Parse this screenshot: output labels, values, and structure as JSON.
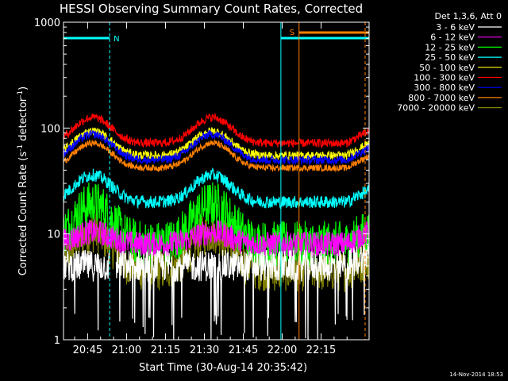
{
  "chart_data": {
    "type": "line",
    "title": "HESSI Observing Summary Count Rates, Corrected",
    "xlabel": "Start Time (30-Aug-14 20:35:42)",
    "ylabel": "Corrected Count Rate (s",
    "ylabel_sup1": "-1",
    "ylabel_mid": " detector",
    "ylabel_sup2": "-1",
    "ylabel_end": ")",
    "yscale": "log",
    "ylim": [
      1,
      1000
    ],
    "xlim_min": [
      35.7,
      153.5
    ],
    "x_ticks": [
      {
        "label": "20:45",
        "min": 45
      },
      {
        "label": "21:00",
        "min": 60
      },
      {
        "label": "21:15",
        "min": 75
      },
      {
        "label": "21:30",
        "min": 90
      },
      {
        "label": "21:45",
        "min": 105
      },
      {
        "label": "22:00",
        "min": 120
      },
      {
        "label": "22:15",
        "min": 135
      }
    ],
    "y_ticks": [
      {
        "label": "1",
        "value": 1
      },
      {
        "label": "10",
        "value": 10
      },
      {
        "label": "100",
        "value": 100
      },
      {
        "label": "1000",
        "value": 1000
      }
    ],
    "legend_header": "Det 1,3,6, Att 0",
    "series": [
      {
        "name": "3 - 6 keV",
        "color": "#ffffff",
        "base": 5,
        "amp": 0,
        "noise": 0.15,
        "spikes": true
      },
      {
        "name": "6 - 12 keV",
        "color": "#ff00ff",
        "base": 8,
        "amp": 0.3,
        "noise": 0.12
      },
      {
        "name": "12 - 25 keV",
        "color": "#00ff00",
        "base": 8,
        "amp": 1.4,
        "noise": 0.22
      },
      {
        "name": "25 - 50 keV",
        "color": "#00ffff",
        "base": 20,
        "amp": 0.8,
        "noise": 0.06
      },
      {
        "name": "50 - 100 keV",
        "color": "#ffff00",
        "base": 55,
        "amp": 0.7,
        "noise": 0.04
      },
      {
        "name": "100 - 300 keV",
        "color": "#ff0000",
        "base": 72,
        "amp": 0.75,
        "noise": 0.04
      },
      {
        "name": "300 - 800 keV",
        "color": "#0000ff",
        "base": 50,
        "amp": 0.75,
        "noise": 0.04
      },
      {
        "name": "800 - 7000 keV",
        "color": "#ff8000",
        "base": 42,
        "amp": 0.72,
        "noise": 0.03
      },
      {
        "name": "7000 - 20000 keV",
        "color": "#808000",
        "base": 4.5,
        "amp": 1.3,
        "noise": 0.2
      }
    ],
    "peaks_min": [
      47,
      93
    ],
    "night_intervals": [
      [
        35.7,
        53.5
      ],
      [
        119.5,
        153.5
      ]
    ],
    "night_label": "N",
    "saa_interval": [
      126.5,
      153.5
    ],
    "saa_label": "S"
  },
  "timestamp": "14-Nov-2014 18:53"
}
